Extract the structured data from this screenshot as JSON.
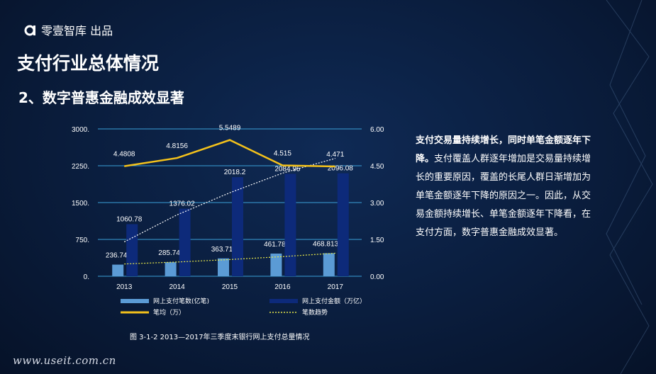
{
  "brand": {
    "name": "零壹智库 出品"
  },
  "page_title": "支付行业总体情况",
  "section_title": "2、数字普惠金融成效显著",
  "description": {
    "bold": "支付交易量持续增长，同时单笔金额逐年下降。",
    "body": "支付覆盖人群逐年增加是交易量持续增长的重要原因，覆盖的长尾人群日渐增加为单笔金额逐年下降的原因之一。因此，从交易金额持续增长、单笔金额逐年下降看，在支付方面，数字普惠金融成效显著。"
  },
  "footer_url": "www.useit.com.cn",
  "colors": {
    "light_bar": "#5b9bd5",
    "dark_bar": "#0d2a7a",
    "avg_line": "#f4c21b",
    "trend_line": "#ffffff",
    "grid": "#3aa0d8"
  },
  "chart_data": {
    "type": "bar",
    "categories": [
      "2013",
      "2014",
      "2015",
      "2016",
      "2017"
    ],
    "left_axis": {
      "ylim": [
        0,
        3000
      ],
      "ticks": [
        "0.",
        "750.",
        "1500.",
        "2250.",
        "3000."
      ]
    },
    "right_axis": {
      "ylim": [
        0,
        6
      ],
      "ticks": [
        "0.00",
        "1.50",
        "3.00",
        "4.50",
        "6.00"
      ]
    },
    "series": [
      {
        "name": "网上支付笔数(亿笔)",
        "type": "bar",
        "axis": "left",
        "values": [
          236.74,
          285.74,
          363.71,
          461.78,
          468.8133
        ],
        "labels": [
          "236.74",
          "285.74",
          "363.71",
          "461.78",
          "468.8133"
        ]
      },
      {
        "name": "网上支付金额（万亿）",
        "type": "bar",
        "axis": "left",
        "values": [
          1060.78,
          1376.02,
          2018.2,
          2084.95,
          2096.08
        ],
        "labels": [
          "1060.78",
          "1376.02",
          "2018.2",
          "2084.95",
          "2096.08"
        ]
      },
      {
        "name": "笔均（万）",
        "type": "line",
        "axis": "right",
        "values": [
          4.4808,
          4.8156,
          5.5489,
          4.515,
          4.471
        ],
        "labels": [
          "4.4808",
          "4.8156",
          "5.5489",
          "4.515",
          "4.471"
        ]
      },
      {
        "name": "笔数趋势",
        "type": "trend",
        "axis": "left",
        "values": [
          250,
          290,
          340,
          400,
          470
        ]
      }
    ],
    "caption": "图 3-1-2  2013—2017年三季度末银行网上支付总量情况"
  }
}
